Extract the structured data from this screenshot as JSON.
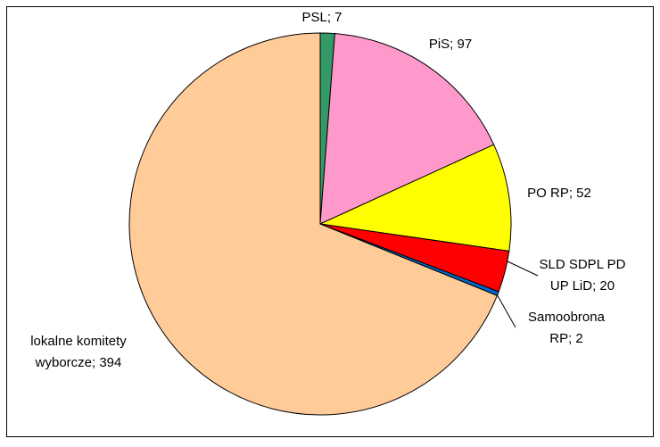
{
  "chart_data": {
    "type": "pie",
    "values": [
      7,
      97,
      52,
      20,
      2,
      394
    ],
    "value_labels": [
      [
        "PSL; 7"
      ],
      [
        "PiS; 97"
      ],
      [
        "PO RP; 52"
      ],
      [
        "SLD SDPL PD",
        "UP LiD; 20"
      ],
      [
        "Samoobrona",
        "RP; 2"
      ],
      [
        "lokalne komitety",
        "wyborcze; 394"
      ]
    ],
    "colors": [
      "#339966",
      "#ff99cc",
      "#ffff00",
      "#ff0000",
      "#0066cc",
      "#ffcc99"
    ]
  }
}
